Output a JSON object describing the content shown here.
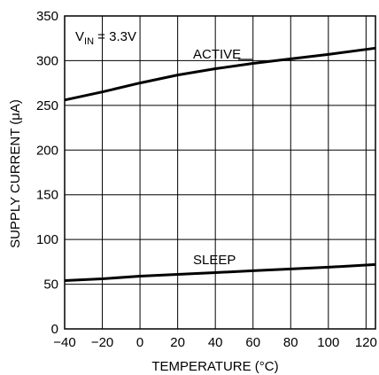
{
  "chart_data": {
    "type": "line",
    "xlabel": "TEMPERATURE (°C)",
    "ylabel": "SUPPLY CURRENT (μA)",
    "annotation": {
      "main": "V",
      "sub": "IN",
      "rest": " = 3.3V"
    },
    "xlim": [
      -40,
      125
    ],
    "ylim": [
      0,
      350
    ],
    "xticks": [
      -40,
      -20,
      0,
      20,
      40,
      60,
      80,
      100,
      120
    ],
    "xtick_labels": [
      "−40",
      "−20",
      "0",
      "20",
      "40",
      "60",
      "80",
      "100",
      "120"
    ],
    "yticks": [
      0,
      50,
      100,
      150,
      200,
      250,
      300,
      350
    ],
    "grid": true,
    "series": [
      {
        "name": "ACTIVE",
        "x": [
          -40,
          -20,
          0,
          20,
          40,
          60,
          80,
          100,
          125
        ],
        "y": [
          256,
          265,
          275,
          284,
          291,
          297,
          302,
          307,
          314
        ]
      },
      {
        "name": "SLEEP",
        "x": [
          -40,
          -20,
          0,
          20,
          40,
          60,
          80,
          100,
          125
        ],
        "y": [
          54,
          56,
          59,
          61,
          63,
          65,
          67,
          69,
          72
        ]
      }
    ]
  }
}
